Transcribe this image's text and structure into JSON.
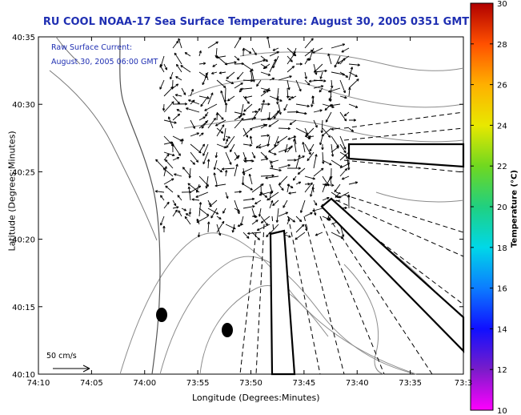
{
  "title": "RU COOL  NOAA-17  Sea Surface Temperature:  August 30, 2005 0351 GMT",
  "annotation": {
    "line1": "Raw Surface Current:",
    "line2": "August 30, 2005 06:00 GMT"
  },
  "scale_label": "50 cm/s",
  "axes": {
    "xlabel": "Longitude (Degrees:Minutes)",
    "ylabel": "Latitude (Degrees:Minutes)",
    "x_ticks": [
      "74:10",
      "74:05",
      "74:00",
      "73:55",
      "73:50",
      "73:45",
      "73:40",
      "73:35",
      "73:3"
    ],
    "y_ticks": [
      "40:35",
      "40:30",
      "40:25",
      "40:20",
      "40:15",
      "40:10"
    ]
  },
  "colorbar": {
    "title": "Temperature (°C)",
    "ticks": [
      "30",
      "28",
      "26",
      "24",
      "22",
      "20",
      "18",
      "16",
      "14",
      "12",
      "10"
    ],
    "range": [
      10,
      30
    ]
  },
  "colors": {
    "title_text": "#1f2fb2",
    "contour": "#8c8c8c",
    "vector": "#000000"
  }
}
